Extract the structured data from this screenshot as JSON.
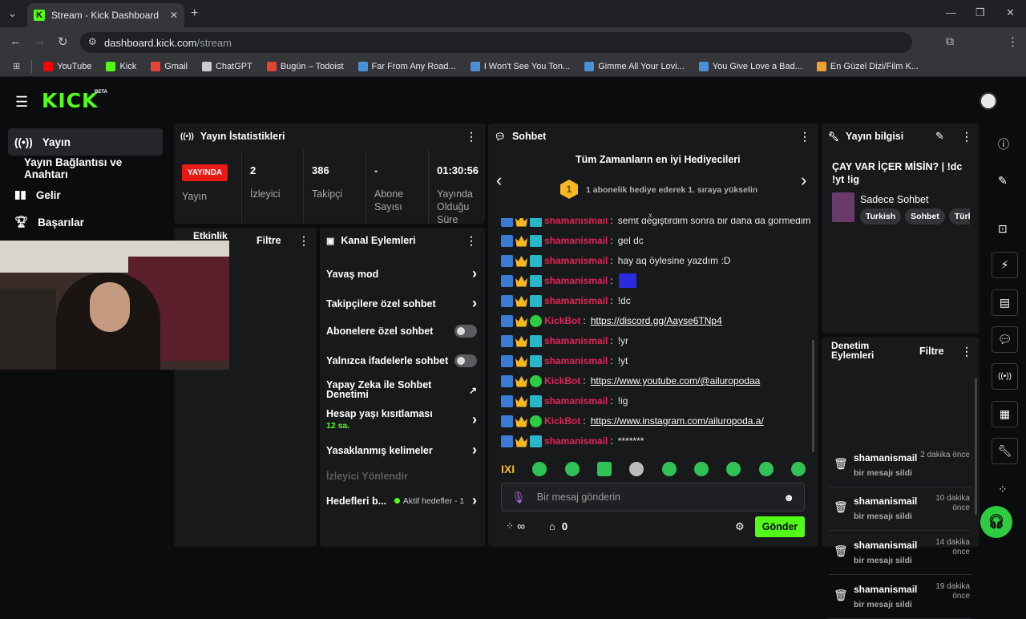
{
  "browser": {
    "tab_title": "Stream - Kick Dashboard",
    "url_domain": "dashboard.kick.com",
    "url_path": "/stream",
    "bookmarks": [
      {
        "label": "YouTube",
        "color": "#ff0000"
      },
      {
        "label": "Kick",
        "color": "#53fc18"
      },
      {
        "label": "Gmail",
        "color": "#ea4335"
      },
      {
        "label": "ChatGPT",
        "color": "#cccccc"
      },
      {
        "label": "Bugün – Todoist",
        "color": "#e44332"
      },
      {
        "label": "Far From Any Road...",
        "color": "#4a90d9"
      },
      {
        "label": "I Won't See You Ton...",
        "color": "#4a90d9"
      },
      {
        "label": "Gimme All Your Lovi...",
        "color": "#4a90d9"
      },
      {
        "label": "You Give Love a Bad...",
        "color": "#4a90d9"
      },
      {
        "label": "En Güzel Dizi/Film K...",
        "color": "#f0a030"
      }
    ]
  },
  "header": {
    "logo": "KICK",
    "beta": "BETA"
  },
  "sidebar": {
    "items": [
      {
        "label": "Yayın",
        "icon": "broadcast-icon"
      },
      {
        "label": "Yayın Bağlantısı ve Anahtarı",
        "icon": ""
      },
      {
        "label": "Gelir",
        "icon": "chart-icon"
      },
      {
        "label": "Başarılar",
        "icon": "trophy-icon"
      }
    ]
  },
  "stats": {
    "title": "Yayın İstatistikleri",
    "live_badge": "YAYINDA",
    "live_label": "Yayın",
    "viewers": "2",
    "viewers_label": "İzleyici",
    "followers": "386",
    "followers_label": "Takipçi",
    "subs": "-",
    "subs_label": "Abone Sayısı",
    "duration": "01:30:56",
    "duration_label": "Yayında Olduğu Süre"
  },
  "activity": {
    "title": "Etkinlik",
    "filter": "Filtre"
  },
  "channel_actions": {
    "title": "Kanal Eylemleri",
    "items": [
      {
        "label": "Yavaş mod",
        "control": "chevron"
      },
      {
        "label": "Takipçilere özel sohbet",
        "control": "chevron"
      },
      {
        "label": "Abonelere özel sohbet",
        "control": "toggle"
      },
      {
        "label": "Yalnızca ifadelerle sohbet",
        "control": "toggle"
      },
      {
        "label": "Yapay Zeka ile Sohbet Denetimi",
        "control": "external"
      },
      {
        "label": "Hesap yaşı kısıtlaması",
        "sub": "12 sa.",
        "control": "chevron"
      },
      {
        "label": "Yasaklanmış kelimeler",
        "control": "chevron"
      }
    ],
    "section": "İzleyici Yönlendir",
    "goals_label": "Hedefleri b...",
    "goals_status": "Aktif hedefler - 1"
  },
  "chat": {
    "title": "Sohbet",
    "gifters_title": "Tüm Zamanların en iyi Hediyecileri",
    "gifters_rank": "1",
    "gifters_text": "1 abonelik hediye ederek 1. sıraya yükselin",
    "messages": [
      {
        "user": "shamanismail",
        "text": "semt değiştirdim sonra bir daha da görmedim",
        "bot": false
      },
      {
        "user": "shamanismail",
        "text": "gel dc",
        "bot": false
      },
      {
        "user": "shamanismail",
        "text": "hay aq öylesine yazdım :D",
        "bot": false
      },
      {
        "user": "shamanismail",
        "text": "",
        "bot": false,
        "emote": true
      },
      {
        "user": "shamanismail",
        "text": "!dc",
        "bot": false
      },
      {
        "user": "KickBot",
        "text": "https://discord.gg/Aayse6TNp4",
        "bot": true
      },
      {
        "user": "shamanismail",
        "text": "!yr",
        "bot": false
      },
      {
        "user": "shamanismail",
        "text": "!yt",
        "bot": false
      },
      {
        "user": "KickBot",
        "text": "https://www.youtube.com/@ailuropodaa",
        "bot": true
      },
      {
        "user": "shamanismail",
        "text": "!ig",
        "bot": false
      },
      {
        "user": "KickBot",
        "text": "https://www.instagram.com/ailuropoda.a/",
        "bot": true
      },
      {
        "user": "shamanismail",
        "text": "*******",
        "bot": false
      }
    ],
    "emote_strip_label": "IXI",
    "input_placeholder": "Bir mesaj gönderin",
    "points": "∞",
    "store_count": "0",
    "send_label": "Gönder"
  },
  "stream_info": {
    "title": "Yayın bilgisi",
    "stream_title": "ÇAY VAR İÇER MİSİN? | !dc !yt !ig",
    "category": "Sadece Sohbet",
    "tags": [
      "Turkish",
      "Sohbet",
      "Türk"
    ]
  },
  "mod_actions": {
    "title": "Denetim Eylemleri",
    "filter": "Filtre",
    "items": [
      {
        "user": "shamanismail",
        "time": "2 dakika önce",
        "action": "bir mesajı sildi"
      },
      {
        "user": "shamanismail",
        "time": "10 dakika önce",
        "action": "bir mesajı sildi"
      },
      {
        "user": "shamanismail",
        "time": "14 dakika önce",
        "action": "bir mesajı sildi"
      },
      {
        "user": "shamanismail",
        "time": "19 dakika önce",
        "action": "bir mesajı sildi"
      }
    ]
  },
  "colors": {
    "brand": "#53fc18",
    "live": "#e91916",
    "username": "#e2245a"
  }
}
